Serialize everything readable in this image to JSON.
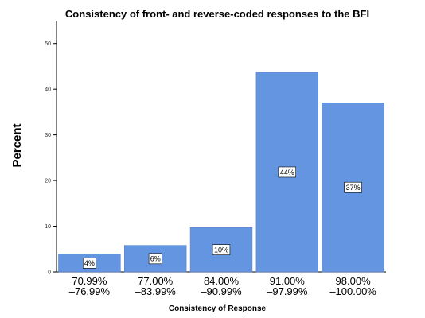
{
  "chart_data": {
    "type": "bar",
    "title": "Consistency of front- and reverse-coded responses to the BFI",
    "xlabel": "Consistency of Response",
    "ylabel": "Percent",
    "ylim": [
      0,
      55
    ],
    "yticks": [
      0,
      10,
      20,
      30,
      40,
      50
    ],
    "categories": [
      [
        "70.99%",
        "–76.99%"
      ],
      [
        "77.00%",
        "–83.99%"
      ],
      [
        "84.00%",
        "–90.99%"
      ],
      [
        "91.00%",
        "–97.99%"
      ],
      [
        "98.00%",
        "–100.00%"
      ]
    ],
    "values": [
      3.9,
      5.8,
      9.7,
      43.7,
      37.0
    ],
    "data_labels": [
      "4%",
      "6%",
      "10%",
      "44%",
      "37%"
    ],
    "bar_color": "#6495e0",
    "grid": false,
    "legend": "none"
  }
}
